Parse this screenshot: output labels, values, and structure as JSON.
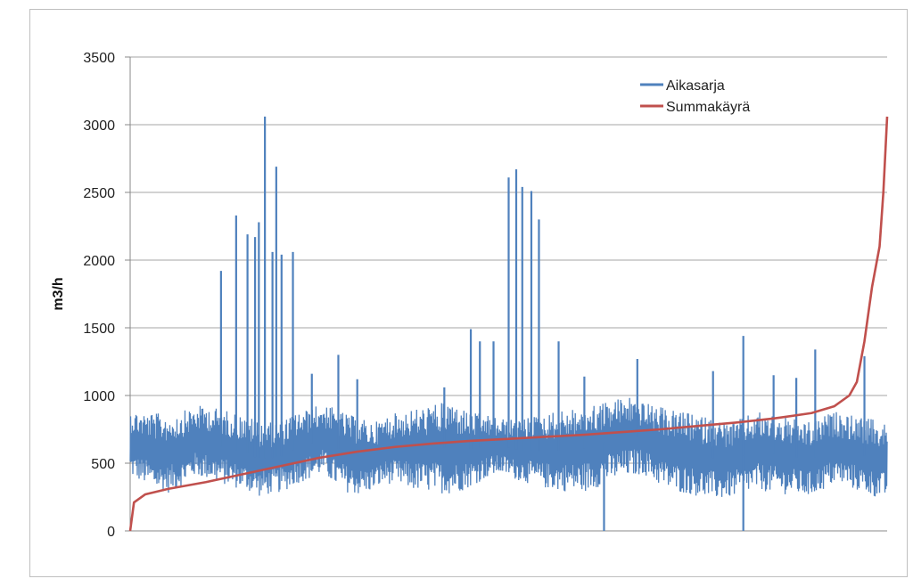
{
  "chart_data": {
    "type": "line",
    "title": "",
    "xlabel": "",
    "ylabel": "m3/h",
    "ylim": [
      0,
      3500
    ],
    "yticks": [
      0,
      500,
      1000,
      1500,
      2000,
      2500,
      3000,
      3500
    ],
    "grid": "horizontal",
    "legend_position": "top-right",
    "series": [
      {
        "name": "Aikasarja",
        "color": "#4f81bd",
        "envelope_low": [
          400,
          350,
          300,
          280,
          330,
          400,
          380,
          350,
          320,
          300,
          250,
          270,
          290,
          350,
          380,
          420,
          330,
          280,
          260,
          300,
          350,
          330,
          300,
          290,
          280,
          270,
          300,
          350,
          400,
          420,
          380,
          350,
          320,
          300,
          290,
          280,
          300,
          350,
          380,
          400,
          420,
          350,
          300,
          280,
          260,
          240,
          230,
          250,
          280,
          300,
          280,
          270,
          260,
          250,
          300,
          350,
          320,
          280,
          250,
          230
        ],
        "envelope_high": [
          900,
          880,
          870,
          860,
          880,
          920,
          930,
          900,
          880,
          850,
          820,
          800,
          820,
          880,
          900,
          950,
          900,
          860,
          830,
          800,
          850,
          880,
          900,
          920,
          940,
          960,
          900,
          870,
          850,
          830,
          820,
          840,
          860,
          880,
          900,
          920,
          940,
          960,
          980,
          1000,
          950,
          920,
          900,
          880,
          860,
          840,
          820,
          800,
          850,
          880,
          860,
          840,
          820,
          800,
          850,
          880,
          860,
          840,
          820,
          800
        ],
        "spikes": [
          {
            "x": 0.12,
            "y": 1920
          },
          {
            "x": 0.14,
            "y": 2330
          },
          {
            "x": 0.155,
            "y": 2190
          },
          {
            "x": 0.165,
            "y": 2170
          },
          {
            "x": 0.17,
            "y": 2280
          },
          {
            "x": 0.178,
            "y": 3060
          },
          {
            "x": 0.188,
            "y": 2060
          },
          {
            "x": 0.193,
            "y": 2690
          },
          {
            "x": 0.2,
            "y": 2040
          },
          {
            "x": 0.215,
            "y": 2060
          },
          {
            "x": 0.24,
            "y": 1160
          },
          {
            "x": 0.275,
            "y": 1300
          },
          {
            "x": 0.3,
            "y": 1120
          },
          {
            "x": 0.415,
            "y": 1060
          },
          {
            "x": 0.45,
            "y": 1490
          },
          {
            "x": 0.462,
            "y": 1400
          },
          {
            "x": 0.48,
            "y": 1400
          },
          {
            "x": 0.5,
            "y": 2610
          },
          {
            "x": 0.51,
            "y": 2670
          },
          {
            "x": 0.518,
            "y": 2540
          },
          {
            "x": 0.53,
            "y": 2510
          },
          {
            "x": 0.54,
            "y": 2300
          },
          {
            "x": 0.566,
            "y": 1400
          },
          {
            "x": 0.6,
            "y": 1140
          },
          {
            "x": 0.626,
            "y": 0
          },
          {
            "x": 0.67,
            "y": 1270
          },
          {
            "x": 0.77,
            "y": 1180
          },
          {
            "x": 0.81,
            "y": 1440
          },
          {
            "x": 0.81,
            "y": 0
          },
          {
            "x": 0.85,
            "y": 1150
          },
          {
            "x": 0.88,
            "y": 1130
          },
          {
            "x": 0.905,
            "y": 1340
          },
          {
            "x": 0.97,
            "y": 1290
          }
        ]
      },
      {
        "name": "Summakäyrä",
        "color": "#c0504d",
        "x": [
          0,
          0.005,
          0.02,
          0.05,
          0.1,
          0.15,
          0.2,
          0.25,
          0.3,
          0.35,
          0.4,
          0.45,
          0.5,
          0.55,
          0.6,
          0.65,
          0.7,
          0.75,
          0.8,
          0.85,
          0.9,
          0.93,
          0.95,
          0.96,
          0.97,
          0.98,
          0.99,
          0.995,
          1.0
        ],
        "y": [
          0,
          210,
          270,
          310,
          360,
          420,
          480,
          540,
          585,
          620,
          645,
          665,
          680,
          695,
          710,
          730,
          750,
          775,
          800,
          830,
          870,
          920,
          1000,
          1100,
          1400,
          1800,
          2100,
          2500,
          3060
        ]
      }
    ]
  }
}
